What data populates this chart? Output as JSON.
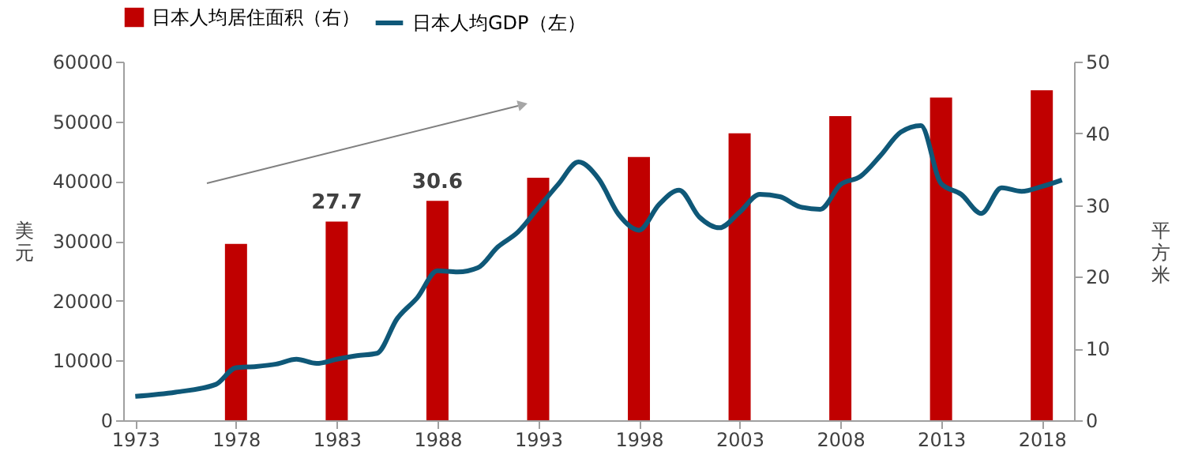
{
  "chart_data": {
    "type": "bar",
    "ylabel": "美元",
    "y2label": "平方米",
    "xlim": [
      1972.4,
      2019.6
    ],
    "xticks": [
      1973,
      1978,
      1983,
      1988,
      1993,
      1998,
      2003,
      2008,
      2013,
      2018
    ],
    "ylim": [
      0,
      60000
    ],
    "yticks": [
      0,
      10000,
      20000,
      30000,
      40000,
      50000,
      60000
    ],
    "y2lim": [
      0,
      50
    ],
    "y2ticks": [
      0,
      10,
      20,
      30,
      40,
      50
    ],
    "legend": "top",
    "grid": false,
    "series": [
      {
        "name": "日本人均居住面积（右）",
        "axis": "y2",
        "color": "#c00000",
        "x": [
          1978,
          1983,
          1988,
          1993,
          1998,
          2003,
          2008,
          2013,
          2018
        ],
        "values": [
          24.6,
          27.7,
          30.6,
          33.8,
          36.7,
          40.0,
          42.4,
          45.0,
          46.0
        ],
        "value_labels": [
          null,
          "27.7",
          "30.6",
          null,
          null,
          null,
          null,
          null,
          null
        ]
      },
      {
        "name": "日本人均GDP（左）",
        "type": "line",
        "axis": "y",
        "color": "#0f5878",
        "marker": "none",
        "line_style": "solid",
        "x": [
          1973,
          1975,
          1977,
          1978,
          1979,
          1980,
          1981,
          1982,
          1983,
          1984,
          1985,
          1986,
          1987,
          1988,
          1989,
          1990,
          1991,
          1992,
          1993,
          1994,
          1995,
          1996,
          1997,
          1998,
          1999,
          2000,
          2001,
          2002,
          2003,
          2004,
          2005,
          2006,
          2007,
          2008,
          2009,
          2010,
          2011,
          2012,
          2013,
          2014,
          2015,
          2016,
          2017,
          2018,
          2019
        ],
        "values": [
          4000,
          4700,
          6000,
          8800,
          9000,
          9400,
          10200,
          9500,
          10200,
          10800,
          11200,
          17000,
          20500,
          25000,
          24800,
          25500,
          29000,
          31500,
          35500,
          39500,
          43200,
          40400,
          34400,
          31800,
          36100,
          38500,
          34000,
          32200,
          34800,
          37800,
          37400,
          35700,
          35300,
          39400,
          40800,
          44300,
          48200,
          49300,
          39600,
          37800,
          34600,
          38900,
          38300,
          39100,
          40200
        ]
      }
    ]
  }
}
